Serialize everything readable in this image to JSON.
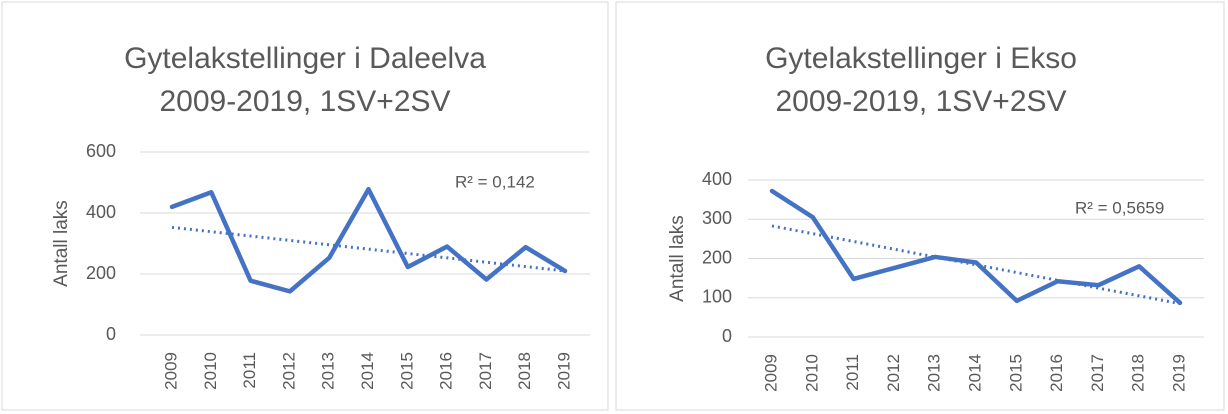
{
  "chart_data": [
    {
      "type": "line",
      "title": [
        "Gytelakstellinger i Daleelva",
        "2009-2019, 1SV+2SV"
      ],
      "y_label": "Antall laks",
      "categories": [
        "2009",
        "2010",
        "2011",
        "2012",
        "2013",
        "2014",
        "2015",
        "2016",
        "2017",
        "2018",
        "2019"
      ],
      "series": [
        {
          "color": "#4472c4",
          "values": [
            420,
            468,
            178,
            143,
            253,
            478,
            223,
            290,
            182,
            288,
            210
          ]
        }
      ],
      "trendline": {
        "color": "#4472c4",
        "style": "dotted",
        "values": [
          353,
          210
        ]
      },
      "annotation": "R² = 0,142",
      "ylim": [
        0,
        600
      ],
      "yticks": [
        0,
        200,
        400,
        600
      ],
      "grid": true
    },
    {
      "type": "line",
      "title": [
        "Gytelakstellinger i Ekso",
        "2009-2019, 1SV+2SV"
      ],
      "y_label": "Antall laks",
      "categories": [
        "2009",
        "2010",
        "2011",
        "2012",
        "2013",
        "2014",
        "2015",
        "2016",
        "2017",
        "2018",
        "2019"
      ],
      "series": [
        {
          "color": "#4472c4",
          "values": [
            372,
            305,
            148,
            176,
            204,
            190,
            92,
            142,
            132,
            180,
            87
          ]
        }
      ],
      "trendline": {
        "color": "#4472c4",
        "style": "dotted",
        "values": [
          283,
          85
        ]
      },
      "annotation": "R² = 0,5659",
      "ylim": [
        0,
        400
      ],
      "yticks": [
        0,
        100,
        200,
        300,
        400
      ],
      "grid": true
    }
  ]
}
